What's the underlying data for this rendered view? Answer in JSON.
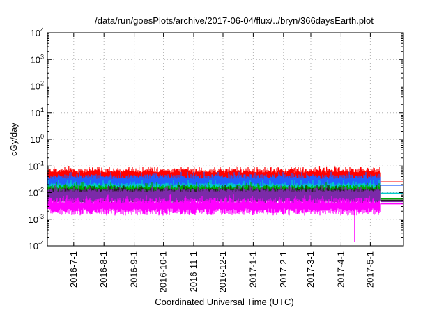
{
  "chart_data": {
    "type": "line",
    "title": "/data/run/goesPlots/archive/2017-06-04/flux/../bryn/366daysEarth.plot",
    "xlabel": "Coordinated Universal Time (UTC)",
    "ylabel": "cGy/day",
    "yscale": "log",
    "ylim": [
      0.0001,
      10000
    ],
    "xlim": [
      "2016-06-04",
      "2017-06-04"
    ],
    "grid": true,
    "y_ticks": [
      {
        "base": "10",
        "exp": "-4",
        "value": 0.0001
      },
      {
        "base": "10",
        "exp": "-3",
        "value": 0.001
      },
      {
        "base": "10",
        "exp": "-2",
        "value": 0.01
      },
      {
        "base": "10",
        "exp": "-1",
        "value": 0.1
      },
      {
        "base": "10",
        "exp": "0",
        "value": 1
      },
      {
        "base": "10",
        "exp": "1",
        "value": 10
      },
      {
        "base": "10",
        "exp": "2",
        "value": 100
      },
      {
        "base": "10",
        "exp": "3",
        "value": 1000
      },
      {
        "base": "10",
        "exp": "4",
        "value": 10000
      }
    ],
    "x_ticks": [
      {
        "label": "2016-7-1",
        "date": "2016-07-01"
      },
      {
        "label": "2016-8-1",
        "date": "2016-08-01"
      },
      {
        "label": "2016-9-1",
        "date": "2016-09-01"
      },
      {
        "label": "2016-10-1",
        "date": "2016-10-01"
      },
      {
        "label": "2016-11-1",
        "date": "2016-11-01"
      },
      {
        "label": "2016-12-1",
        "date": "2016-12-01"
      },
      {
        "label": "2017-1-1",
        "date": "2017-01-01"
      },
      {
        "label": "2017-2-1",
        "date": "2017-02-01"
      },
      {
        "label": "2017-3-1",
        "date": "2017-03-01"
      },
      {
        "label": "2017-4-1",
        "date": "2017-04-01"
      },
      {
        "label": "2017-5-1",
        "date": "2017-05-01"
      }
    ],
    "data_end": "2017-05-12",
    "series": [
      {
        "color": "#ff0000",
        "values": {
          "base": 0.06,
          "spread": 1.35,
          "spike_max": 0.09
        },
        "last": 0.025
      },
      {
        "color": "#1f5fff",
        "values": {
          "base": 0.035,
          "spread": 1.4,
          "spike_max": 0.06
        },
        "last": 0.019
      },
      {
        "color": "#00cccc",
        "values": {
          "base": 0.018,
          "spread": 1.3,
          "spike_max": 0.03
        },
        "last": 0.0095
      },
      {
        "color": "#00aa00",
        "values": {
          "base": 0.015,
          "spread": 1.3,
          "spike_max": 0.025
        },
        "last": 0.0058
      },
      {
        "color": "#222222",
        "values": {
          "base": 0.012,
          "spread": 1.25,
          "spike_max": 0.02
        },
        "last": 0.0052
      },
      {
        "color": "#7b2aa8",
        "values": {
          "base": 0.011,
          "spread": 1.25,
          "spike_max": 0.02
        },
        "last": 0.0046
      },
      {
        "color": "#ff00ff",
        "values": {
          "base": 0.0042,
          "spread": 1.5,
          "spike_max": 0.035,
          "dips": [
            {
              "date": "2016-09-25",
              "value": 0.0018
            },
            {
              "date": "2017-04-15",
              "value": 0.00014
            }
          ]
        },
        "last": 0.0038
      }
    ]
  }
}
